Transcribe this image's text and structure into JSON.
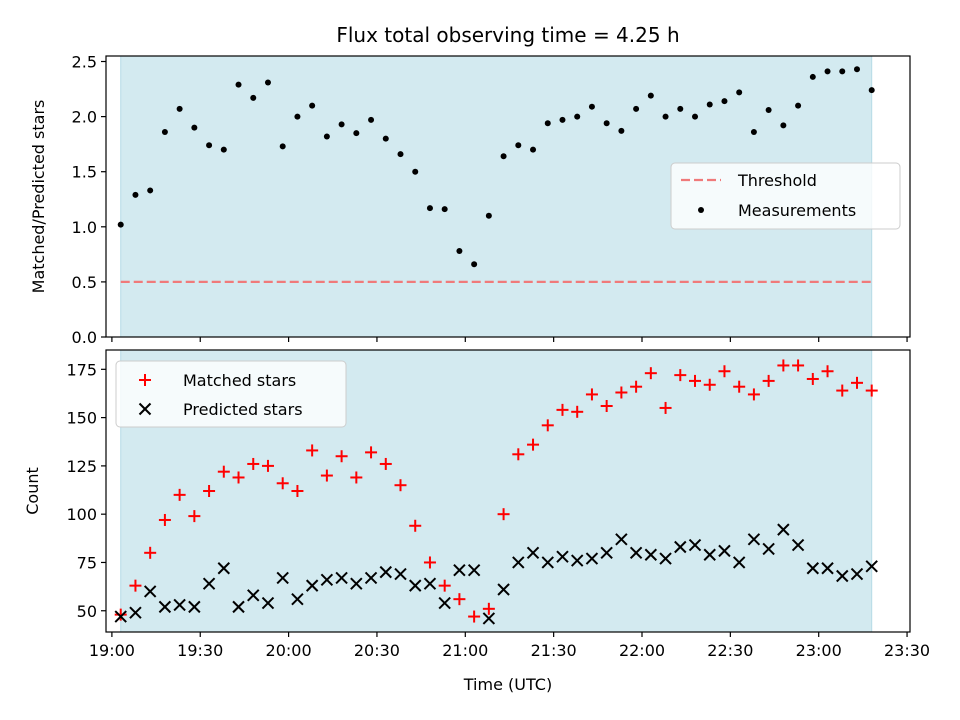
{
  "chart_data": [
    {
      "type": "scatter",
      "title": "Flux total observing time = 4.25 h",
      "xlabel": "",
      "ylabel": "Matched/Predicted stars",
      "ylim": [
        0,
        2.55
      ],
      "xlim": [
        "18:58",
        "23:31"
      ],
      "yticks": [
        "0.0",
        "0.5",
        "1.0",
        "1.5",
        "2.0",
        "2.5"
      ],
      "shaded_region": {
        "from": "19:03",
        "to": "23:18",
        "color": "#d3eaf0"
      },
      "legend_position": "center-right",
      "threshold": {
        "name": "Threshold",
        "value": 0.5,
        "color": "#f07a7a",
        "style": "dashed"
      },
      "series": [
        {
          "name": "Measurements",
          "marker": "dot",
          "color": "#000000",
          "x": [
            "19:03",
            "19:08",
            "19:13",
            "19:18",
            "19:23",
            "19:28",
            "19:33",
            "19:38",
            "19:43",
            "19:48",
            "19:53",
            "19:58",
            "20:03",
            "20:08",
            "20:13",
            "20:18",
            "20:23",
            "20:28",
            "20:33",
            "20:38",
            "20:43",
            "20:48",
            "20:53",
            "20:58",
            "21:03",
            "21:08",
            "21:13",
            "21:18",
            "21:23",
            "21:28",
            "21:33",
            "21:38",
            "21:43",
            "21:48",
            "21:53",
            "21:58",
            "22:03",
            "22:08",
            "22:13",
            "22:18",
            "22:23",
            "22:28",
            "22:33",
            "22:38",
            "22:43",
            "22:48",
            "22:53",
            "22:58",
            "23:03",
            "23:08",
            "23:13",
            "23:18"
          ],
          "y": [
            1.02,
            1.29,
            1.33,
            1.86,
            2.07,
            1.9,
            1.74,
            1.7,
            2.29,
            2.17,
            2.31,
            1.73,
            2.0,
            2.1,
            1.82,
            1.93,
            1.85,
            1.97,
            1.8,
            1.66,
            1.5,
            1.17,
            1.16,
            0.78,
            0.66,
            1.1,
            1.64,
            1.74,
            1.7,
            1.94,
            1.97,
            2.0,
            2.09,
            1.94,
            1.87,
            2.07,
            2.19,
            2.0,
            2.07,
            2.0,
            2.11,
            2.14,
            2.22,
            1.86,
            2.06,
            1.92,
            2.1,
            2.36,
            2.41,
            2.41,
            2.43,
            2.24
          ]
        }
      ]
    },
    {
      "type": "scatter",
      "title": "",
      "xlabel": "Time (UTC)",
      "ylabel": "Count",
      "ylim": [
        39,
        185
      ],
      "xlim": [
        "18:58",
        "23:31"
      ],
      "yticks": [
        "50",
        "75",
        "100",
        "125",
        "150",
        "175"
      ],
      "xticks": [
        "19:00",
        "19:30",
        "20:00",
        "20:30",
        "21:00",
        "21:30",
        "22:00",
        "22:30",
        "23:00",
        "23:30"
      ],
      "shaded_region": {
        "from": "19:03",
        "to": "23:18",
        "color": "#d3eaf0"
      },
      "legend_position": "upper-left",
      "series": [
        {
          "name": "Matched stars",
          "marker": "plus",
          "color": "#ff0000",
          "x": [
            "19:03",
            "19:08",
            "19:13",
            "19:18",
            "19:23",
            "19:28",
            "19:33",
            "19:38",
            "19:43",
            "19:48",
            "19:53",
            "19:58",
            "20:03",
            "20:08",
            "20:13",
            "20:18",
            "20:23",
            "20:28",
            "20:33",
            "20:38",
            "20:43",
            "20:48",
            "20:53",
            "20:58",
            "21:03",
            "21:08",
            "21:13",
            "21:18",
            "21:23",
            "21:28",
            "21:33",
            "21:38",
            "21:43",
            "21:48",
            "21:53",
            "21:58",
            "22:03",
            "22:08",
            "22:13",
            "22:18",
            "22:23",
            "22:28",
            "22:33",
            "22:38",
            "22:43",
            "22:48",
            "22:53",
            "22:58",
            "23:03",
            "23:08",
            "23:13",
            "23:18"
          ],
          "y": [
            48,
            63,
            80,
            97,
            110,
            99,
            112,
            122,
            119,
            126,
            125,
            116,
            112,
            133,
            120,
            130,
            119,
            132,
            126,
            115,
            94,
            75,
            63,
            56,
            47,
            51,
            100,
            131,
            136,
            146,
            154,
            153,
            162,
            156,
            163,
            166,
            173,
            155,
            172,
            169,
            167,
            174,
            166,
            162,
            169,
            177,
            177,
            170,
            174,
            164,
            168,
            164
          ]
        },
        {
          "name": "Predicted stars",
          "marker": "x",
          "color": "#000000",
          "x": [
            "19:03",
            "19:08",
            "19:13",
            "19:18",
            "19:23",
            "19:28",
            "19:33",
            "19:38",
            "19:43",
            "19:48",
            "19:53",
            "19:58",
            "20:03",
            "20:08",
            "20:13",
            "20:18",
            "20:23",
            "20:28",
            "20:33",
            "20:38",
            "20:43",
            "20:48",
            "20:53",
            "20:58",
            "21:03",
            "21:08",
            "21:13",
            "21:18",
            "21:23",
            "21:28",
            "21:33",
            "21:38",
            "21:43",
            "21:48",
            "21:53",
            "21:58",
            "22:03",
            "22:08",
            "22:13",
            "22:18",
            "22:23",
            "22:28",
            "22:33",
            "22:38",
            "22:43",
            "22:48",
            "22:53",
            "22:58",
            "23:03",
            "23:08",
            "23:13",
            "23:18"
          ],
          "y": [
            47,
            49,
            60,
            52,
            53,
            52,
            64,
            72,
            52,
            58,
            54,
            67,
            56,
            63,
            66,
            67,
            64,
            67,
            70,
            69,
            63,
            64,
            54,
            71,
            71,
            46,
            61,
            75,
            80,
            75,
            78,
            76,
            77,
            80,
            87,
            80,
            79,
            77,
            83,
            84,
            79,
            81,
            75,
            87,
            82,
            92,
            84,
            72,
            72,
            68,
            69,
            73
          ]
        }
      ]
    }
  ]
}
